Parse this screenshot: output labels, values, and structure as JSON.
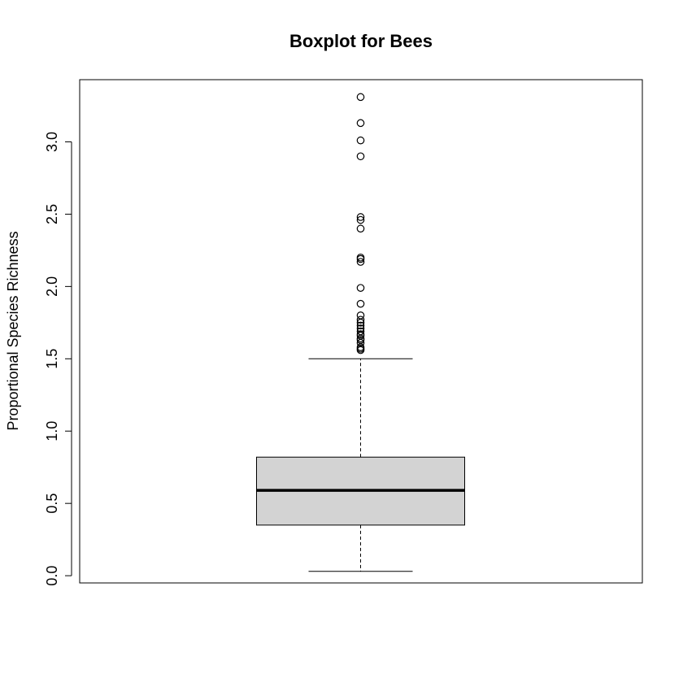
{
  "chart_data": {
    "type": "boxplot",
    "title": "Boxplot for Bees",
    "xlabel": "",
    "ylabel": "Proportional Species Richness",
    "ylim": [
      -0.05,
      3.43
    ],
    "y_ticks": [
      0.0,
      0.5,
      1.0,
      1.5,
      2.0,
      2.5,
      3.0
    ],
    "y_tick_labels": [
      "0.0",
      "0.5",
      "1.0",
      "1.5",
      "2.0",
      "2.5",
      "3.0"
    ],
    "grid": false,
    "legend": "none",
    "boxes": [
      {
        "whisker_low": 0.03,
        "q1": 0.35,
        "median": 0.59,
        "q3": 0.82,
        "whisker_high": 1.5,
        "outliers": [
          1.56,
          1.57,
          1.58,
          1.61,
          1.63,
          1.64,
          1.66,
          1.67,
          1.69,
          1.71,
          1.73,
          1.75,
          1.77,
          1.8,
          1.88,
          1.99,
          2.17,
          2.19,
          2.2,
          2.4,
          2.46,
          2.48,
          2.9,
          3.01,
          3.13,
          3.31
        ]
      }
    ],
    "colors": {
      "box_fill": "#d3d3d3",
      "stroke": "#000000"
    }
  }
}
